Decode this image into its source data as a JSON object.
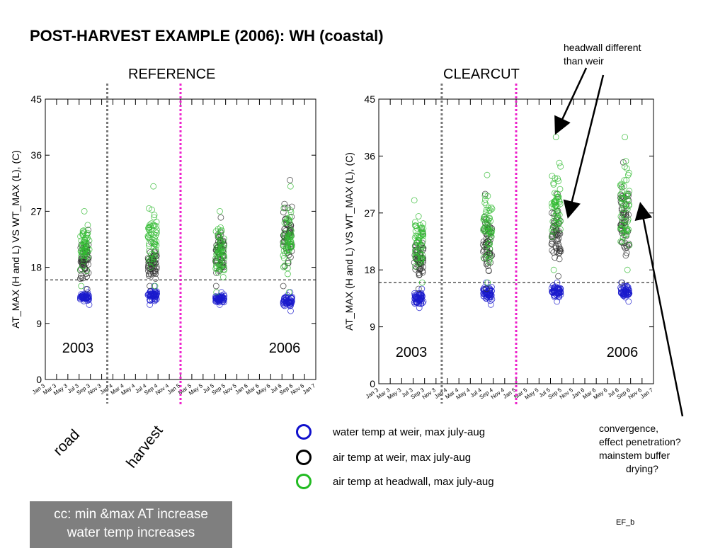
{
  "title": "POST-HARVEST EXAMPLE (2006):  WH (coastal)",
  "annotations": {
    "headwall": [
      "headwall different",
      "than weir"
    ],
    "convergence": [
      "convergence,",
      "effect penetration?",
      "mainstem buffer",
      "drying?"
    ],
    "road": "road",
    "harvest": "harvest",
    "footer_code": "EF_b",
    "summary": [
      "cc: min &max AT increase",
      "water temp increases"
    ]
  },
  "legend": [
    {
      "label": "water temp at weir, max july-aug",
      "color": "#1010cc"
    },
    {
      "label": "air temp at weir, max july-aug",
      "color": "#000000"
    },
    {
      "label": "air temp at headwall, max july-aug",
      "color": "#22bb22"
    }
  ],
  "colors": {
    "water_weir": "#1a1acc",
    "air_weir": "#333333",
    "air_headwall": "#33bb33",
    "road_line": "#777777",
    "harvest_line": "#ee22cc"
  },
  "chart_data": [
    {
      "type": "scatter",
      "title": "REFERENCE",
      "ylabel": "AT_MAX (H and L) VS WT_MAX (L), (C)",
      "ylim": [
        0,
        45
      ],
      "yticks": [
        0,
        9,
        18,
        27,
        36,
        45
      ],
      "xrange": [
        "2003-01",
        "2007-01"
      ],
      "xtick_labels": [
        "Jan 3",
        "Mar 3",
        "May 3",
        "Jul 3",
        "Sep 3",
        "Nov 3",
        "Jan 4",
        "Mar 4",
        "May 4",
        "Jul 4",
        "Sep 4",
        "Nov 4",
        "Jan 5",
        "Mar 5",
        "May 5",
        "Jul 5",
        "Sep 5",
        "Nov 5",
        "Jan 6",
        "Mar 6",
        "May 6",
        "Jul 6",
        "Sep 6",
        "Nov 6",
        "Jan 7"
      ],
      "year_labels": [
        {
          "text": "2003",
          "pos": "bottom-left"
        },
        {
          "text": "2006",
          "pos": "bottom-right"
        }
      ],
      "reference_line_y": 16,
      "road_line": "2003-12",
      "harvest_line": "2005-01",
      "series": [
        {
          "key": "water_weir",
          "clusters": [
            {
              "year": 2003,
              "min": 12,
              "max": 14.5
            },
            {
              "year": 2004,
              "min": 12,
              "max": 15
            },
            {
              "year": 2005,
              "min": 12,
              "max": 14
            },
            {
              "year": 2006,
              "min": 11,
              "max": 14
            }
          ]
        },
        {
          "key": "air_weir",
          "clusters": [
            {
              "year": 2003,
              "min": 14.5,
              "max": 24
            },
            {
              "year": 2004,
              "min": 15,
              "max": 22
            },
            {
              "year": 2005,
              "min": 15,
              "max": 26
            },
            {
              "year": 2006,
              "min": 15,
              "max": 32
            }
          ]
        },
        {
          "key": "air_headwall",
          "clusters": [
            {
              "year": 2003,
              "min": 15,
              "max": 27
            },
            {
              "year": 2004,
              "min": 15,
              "max": 31
            },
            {
              "year": 2005,
              "min": 14,
              "max": 27
            },
            {
              "year": 2006,
              "min": 14,
              "max": 31
            }
          ]
        }
      ]
    },
    {
      "type": "scatter",
      "title": "CLEARCUT",
      "ylabel": "AT_MAX (H and L) VS WT_MAX (L), (C)",
      "ylim": [
        0,
        45
      ],
      "yticks": [
        0,
        9,
        18,
        27,
        36,
        45
      ],
      "xrange": [
        "2003-01",
        "2007-01"
      ],
      "xtick_labels": [
        "Jan 3",
        "Mar 3",
        "May 3",
        "Jul 3",
        "Sep 3",
        "Nov 3",
        "Jan 4",
        "Mar 4",
        "May 4",
        "Jul 4",
        "Sep 4",
        "Nov 4",
        "Jan 5",
        "Mar 5",
        "May 5",
        "Jul 5",
        "Sep 5",
        "Nov 5",
        "Jan 6",
        "Mar 6",
        "May 6",
        "Jul 6",
        "Sep 6",
        "Nov 6",
        "Jan 7"
      ],
      "year_labels": [
        {
          "text": "2003",
          "pos": "bottom-left"
        },
        {
          "text": "2006",
          "pos": "bottom-right"
        }
      ],
      "reference_line_y": 16,
      "road_line": "2003-12",
      "harvest_line": "2005-01",
      "series": [
        {
          "key": "water_weir",
          "clusters": [
            {
              "year": 2003,
              "min": 12,
              "max": 15
            },
            {
              "year": 2004,
              "min": 12.5,
              "max": 16
            },
            {
              "year": 2005,
              "min": 13,
              "max": 16
            },
            {
              "year": 2006,
              "min": 13,
              "max": 16
            }
          ]
        },
        {
          "key": "air_weir",
          "clusters": [
            {
              "year": 2003,
              "min": 15,
              "max": 24
            },
            {
              "year": 2004,
              "min": 15,
              "max": 30
            },
            {
              "year": 2005,
              "min": 17,
              "max": 30
            },
            {
              "year": 2006,
              "min": 16,
              "max": 35
            }
          ]
        },
        {
          "key": "air_headwall",
          "clusters": [
            {
              "year": 2003,
              "min": 16,
              "max": 29
            },
            {
              "year": 2004,
              "min": 16,
              "max": 33
            },
            {
              "year": 2005,
              "min": 18,
              "max": 39
            },
            {
              "year": 2006,
              "min": 18,
              "max": 39
            }
          ]
        }
      ]
    }
  ]
}
